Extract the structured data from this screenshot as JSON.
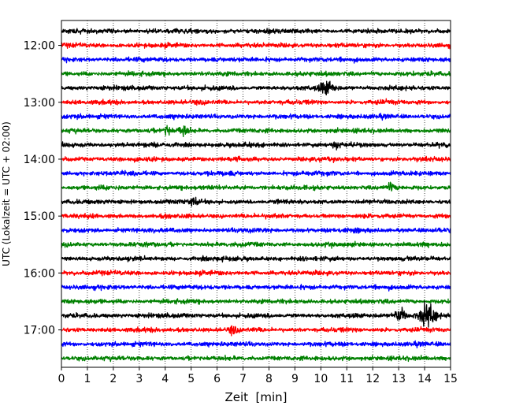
{
  "chart_data": {
    "type": "line",
    "title": "",
    "xlabel": "Zeit  [min]",
    "ylabel": "UTC (Lokalzeit = UTC + 02:00)",
    "xlim": [
      0,
      15
    ],
    "x_ticks": [
      0,
      1,
      2,
      3,
      4,
      5,
      6,
      7,
      8,
      9,
      10,
      11,
      12,
      13,
      14,
      15
    ],
    "y_tick_labels": [
      "12:00",
      "13:00",
      "14:00",
      "15:00",
      "16:00",
      "17:00"
    ],
    "grid": "vertical dotted lines at each minute",
    "trace_interval_minutes": 15,
    "trace_colors": [
      "#000000",
      "#ff0000",
      "#0000ff",
      "#008000"
    ],
    "traces": [
      {
        "start": "11:45",
        "color": "#000000",
        "events": []
      },
      {
        "start": "12:00",
        "color": "#ff0000",
        "events": []
      },
      {
        "start": "12:15",
        "color": "#0000ff",
        "events": []
      },
      {
        "start": "12:30",
        "color": "#008000",
        "events": []
      },
      {
        "start": "12:45",
        "color": "#000000",
        "events": [
          {
            "minute": 10.25,
            "amplitude": 3.2,
            "duration": 0.6
          }
        ]
      },
      {
        "start": "13:00",
        "color": "#ff0000",
        "events": []
      },
      {
        "start": "13:15",
        "color": "#0000ff",
        "events": []
      },
      {
        "start": "13:30",
        "color": "#008000",
        "events": [
          {
            "minute": 4.1,
            "amplitude": 3.0,
            "duration": 0.25
          },
          {
            "minute": 4.7,
            "amplitude": 2.2,
            "duration": 0.4
          }
        ]
      },
      {
        "start": "13:45",
        "color": "#000000",
        "events": [
          {
            "minute": 10.6,
            "amplitude": 1.5,
            "duration": 0.3
          }
        ]
      },
      {
        "start": "14:00",
        "color": "#ff0000",
        "events": []
      },
      {
        "start": "14:15",
        "color": "#0000ff",
        "events": []
      },
      {
        "start": "14:30",
        "color": "#008000",
        "events": [
          {
            "minute": 12.7,
            "amplitude": 1.4,
            "duration": 0.3
          }
        ]
      },
      {
        "start": "14:45",
        "color": "#000000",
        "events": [
          {
            "minute": 5.1,
            "amplitude": 1.6,
            "duration": 0.3
          }
        ]
      },
      {
        "start": "15:00",
        "color": "#ff0000",
        "events": []
      },
      {
        "start": "15:15",
        "color": "#0000ff",
        "events": []
      },
      {
        "start": "15:30",
        "color": "#008000",
        "events": []
      },
      {
        "start": "15:45",
        "color": "#000000",
        "events": []
      },
      {
        "start": "16:00",
        "color": "#ff0000",
        "events": []
      },
      {
        "start": "16:15",
        "color": "#0000ff",
        "events": []
      },
      {
        "start": "16:30",
        "color": "#008000",
        "events": []
      },
      {
        "start": "16:45",
        "color": "#000000",
        "events": [
          {
            "minute": 13.05,
            "amplitude": 3.0,
            "duration": 0.5
          },
          {
            "minute": 14.1,
            "amplitude": 5.0,
            "duration": 0.7
          }
        ]
      },
      {
        "start": "17:00",
        "color": "#ff0000",
        "events": [
          {
            "minute": 6.6,
            "amplitude": 1.5,
            "duration": 0.3
          }
        ]
      },
      {
        "start": "17:15",
        "color": "#0000ff",
        "events": []
      },
      {
        "start": "17:30",
        "color": "#008000",
        "events": []
      }
    ]
  }
}
